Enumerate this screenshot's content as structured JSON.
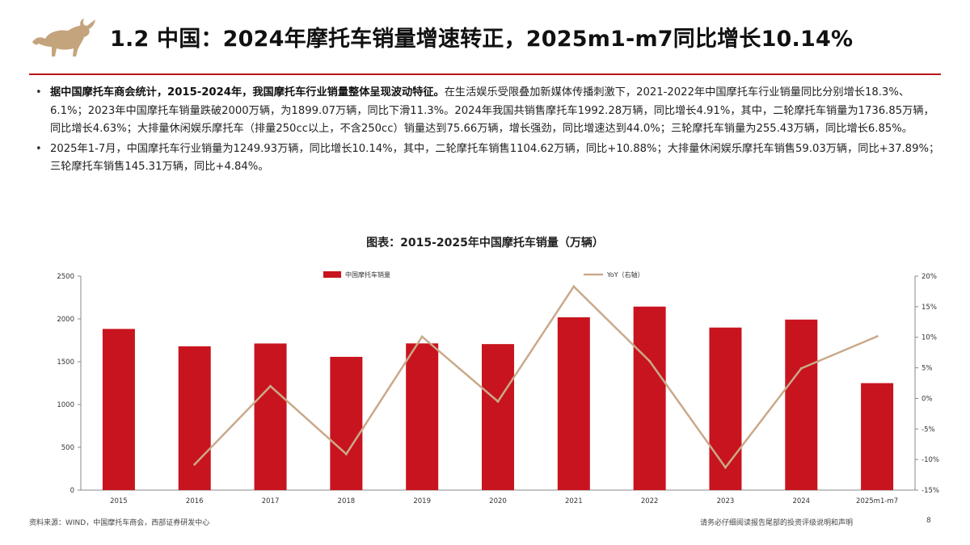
{
  "header": {
    "title": "1.2 中国：2024年摩托车销量增速转正，2025m1-m7同比增长10.14%"
  },
  "body": {
    "p1_lead": "据中国摩托车商会统计，2015-2024年，我国摩托车行业销量整体呈现波动特征。",
    "p1_rest": "在生活娱乐受限叠加新媒体传播刺激下，2021-2022年中国摩托车行业销量同比分别增长18.3%、6.1%；2023年中国摩托车销量跌破2000万辆，为1899.07万辆，同比下滑11.3%。2024年我国共销售摩托车1992.28万辆，同比增长4.91%，其中，二轮摩托车销量为1736.85万辆，同比增长4.63%；大排量休闲娱乐摩托车（排量250cc以上，不含250cc）销量达到75.66万辆，增长强劲，同比增速达到44.0%；三轮摩托车销量为255.43万辆，同比增长6.85%。",
    "p2": "2025年1-7月，中国摩托车行业销量为1249.93万辆，同比增长10.14%，其中，二轮摩托车销售1104.62万辆，同比+10.88%；大排量休闲娱乐摩托车销售59.03万辆，同比+37.89%；三轮摩托车销售145.31万辆，同比+4.84%。",
    "bullet": "•"
  },
  "chart_data": {
    "type": "bar",
    "title": "图表：2015-2025年中国摩托车销量（万辆）",
    "categories": [
      "2015",
      "2016",
      "2017",
      "2018",
      "2019",
      "2020",
      "2021",
      "2022",
      "2023",
      "2024",
      "2025m1-m7"
    ],
    "series": [
      {
        "name": "中国摩托车销量",
        "type": "bar",
        "axis": "left",
        "values": [
          1883,
          1680,
          1713,
          1557,
          1714,
          1706,
          2019,
          2144,
          1899.07,
          1992.28,
          1249.93
        ]
      },
      {
        "name": "YoY（右轴）",
        "type": "line",
        "axis": "right",
        "values": [
          null,
          -10.8,
          2.0,
          -9.1,
          10.1,
          -0.5,
          18.3,
          6.1,
          -11.3,
          4.91,
          10.14
        ]
      }
    ],
    "ylim": [
      0,
      2500
    ],
    "yticks": [
      "0",
      "500",
      "1000",
      "1500",
      "2000",
      "2500"
    ],
    "y2lim": [
      -15,
      20
    ],
    "y2ticks": [
      "-15%",
      "-10%",
      "-5%",
      "0%",
      "5%",
      "10%",
      "15%",
      "20%"
    ],
    "legend": "top",
    "grid": false,
    "colors": {
      "bar": "#c8141e",
      "line": "#c9a98a"
    }
  },
  "footer": {
    "source": "资料来源：WIND，中国摩托车商会，西部证券研发中心",
    "disclaimer": "请务必仔细阅读报告尾部的投资评级说明和声明",
    "page": "8"
  },
  "colors": {
    "accent": "#b8151c",
    "logo": "#c4a47c"
  },
  "icons": {
    "logo": "bull-logo-icon"
  }
}
